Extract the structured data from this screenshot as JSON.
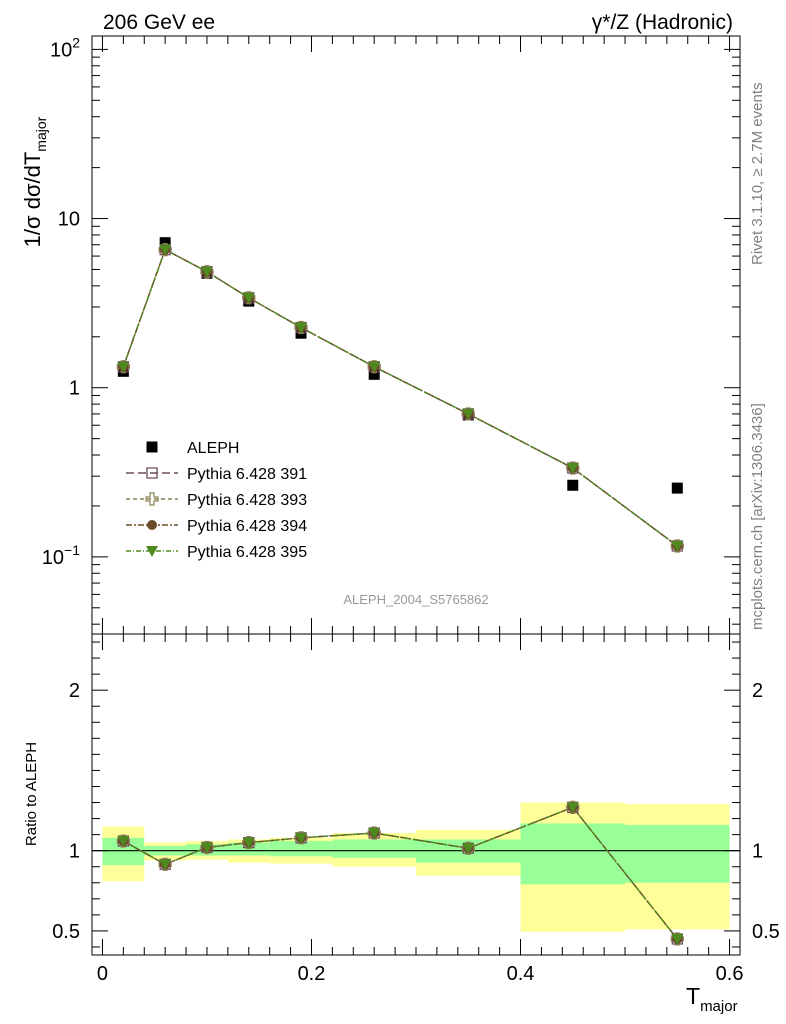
{
  "header": {
    "left": "206 GeV ee",
    "right": "γ*/Z (Hadronic)"
  },
  "side_labels": {
    "rivet": "Rivet 3.1.10, ≥ 2.7M events",
    "mcplots": "mcplots.cern.ch [arXiv:1306.3436]"
  },
  "analysis_label": "ALEPH_2004_S5765862",
  "colors": {
    "data": "#000000",
    "p391": "#714b5f",
    "p393": "#8c8050",
    "p394": "#6b4c2a",
    "p395": "#4e8a1e",
    "band_inner": "#99ff99",
    "band_outer": "#ffff99"
  },
  "chart_data": [
    {
      "type": "scatter",
      "panel": "main",
      "ylabel": "1/σ  dσ/dT_major",
      "yscale": "log",
      "ylim": [
        0.035,
        120
      ],
      "xlim": [
        -0.01,
        0.61
      ],
      "yticks": [
        {
          "value": 0.1,
          "label": "10^-1"
        },
        {
          "value": 1,
          "label": "1"
        },
        {
          "value": 10,
          "label": "10"
        },
        {
          "value": 100,
          "label": "10^2"
        }
      ],
      "legend_position": "lower-left",
      "series": [
        {
          "name": "ALEPH",
          "marker": "square",
          "x": [
            0.02,
            0.06,
            0.1,
            0.14,
            0.19,
            0.26,
            0.35,
            0.45,
            0.55
          ],
          "y": [
            1.25,
            7.2,
            4.75,
            3.25,
            2.1,
            1.2,
            0.69,
            0.265,
            0.255
          ]
        },
        {
          "name": "Pythia 6.428 391",
          "marker": "open-square",
          "x": [
            0.02,
            0.06,
            0.1,
            0.14,
            0.19,
            0.26,
            0.35,
            0.45,
            0.55
          ],
          "y": [
            1.33,
            6.55,
            4.85,
            3.4,
            2.27,
            1.33,
            0.7,
            0.335,
            0.116
          ]
        },
        {
          "name": "Pythia 6.428 393",
          "marker": "open-cross",
          "x": [
            0.02,
            0.06,
            0.1,
            0.14,
            0.19,
            0.26,
            0.35,
            0.45,
            0.55
          ],
          "y": [
            1.33,
            6.55,
            4.85,
            3.4,
            2.27,
            1.33,
            0.7,
            0.335,
            0.116
          ]
        },
        {
          "name": "Pythia 6.428 394",
          "marker": "circle",
          "x": [
            0.02,
            0.06,
            0.1,
            0.14,
            0.19,
            0.26,
            0.35,
            0.45,
            0.55
          ],
          "y": [
            1.33,
            6.55,
            4.85,
            3.4,
            2.27,
            1.33,
            0.7,
            0.335,
            0.116
          ]
        },
        {
          "name": "Pythia 6.428 395",
          "marker": "triangle-down",
          "x": [
            0.02,
            0.06,
            0.1,
            0.14,
            0.19,
            0.26,
            0.35,
            0.45,
            0.55
          ],
          "y": [
            1.33,
            6.55,
            4.85,
            3.4,
            2.27,
            1.33,
            0.7,
            0.335,
            0.116
          ]
        }
      ]
    },
    {
      "type": "line",
      "panel": "ratio",
      "ylabel": "Ratio to ALEPH",
      "xlabel": "T_major",
      "ylim": [
        0.35,
        2.35
      ],
      "xlim": [
        -0.01,
        0.61
      ],
      "xticks": [
        0,
        0.2,
        0.4,
        0.6
      ],
      "xtick_labels": [
        "0",
        "0.2",
        "0.4",
        "0.6"
      ],
      "yticks": [
        0.5,
        1,
        2
      ],
      "ytick_labels": [
        "0.5",
        "1",
        "2"
      ],
      "bands": {
        "edges": [
          0,
          0.04,
          0.08,
          0.12,
          0.16,
          0.22,
          0.3,
          0.4,
          0.5,
          0.6
        ],
        "inner_low": [
          0.91,
          0.97,
          0.97,
          0.97,
          0.965,
          0.955,
          0.925,
          0.79,
          0.8
        ],
        "inner_high": [
          1.08,
          1.03,
          1.04,
          1.05,
          1.06,
          1.07,
          1.07,
          1.17,
          1.16
        ],
        "outer_low": [
          0.81,
          0.94,
          0.945,
          0.925,
          0.92,
          0.9,
          0.845,
          0.495,
          0.51
        ],
        "outer_high": [
          1.15,
          1.05,
          1.06,
          1.07,
          1.08,
          1.11,
          1.13,
          1.3,
          1.29
        ]
      },
      "x": [
        0.02,
        0.06,
        0.1,
        0.14,
        0.19,
        0.26,
        0.35,
        0.45,
        0.55
      ],
      "series": [
        {
          "name": "Pythia 6.428 391",
          "values": [
            1.06,
            0.915,
            1.02,
            1.05,
            1.08,
            1.11,
            1.015,
            1.27,
            0.45
          ]
        },
        {
          "name": "Pythia 6.428 393",
          "values": [
            1.06,
            0.915,
            1.02,
            1.05,
            1.08,
            1.11,
            1.015,
            1.27,
            0.45
          ]
        },
        {
          "name": "Pythia 6.428 394",
          "values": [
            1.06,
            0.915,
            1.02,
            1.05,
            1.08,
            1.11,
            1.015,
            1.27,
            0.45
          ]
        },
        {
          "name": "Pythia 6.428 395",
          "values": [
            1.06,
            0.915,
            1.02,
            1.05,
            1.08,
            1.11,
            1.015,
            1.27,
            0.45
          ]
        }
      ]
    }
  ]
}
